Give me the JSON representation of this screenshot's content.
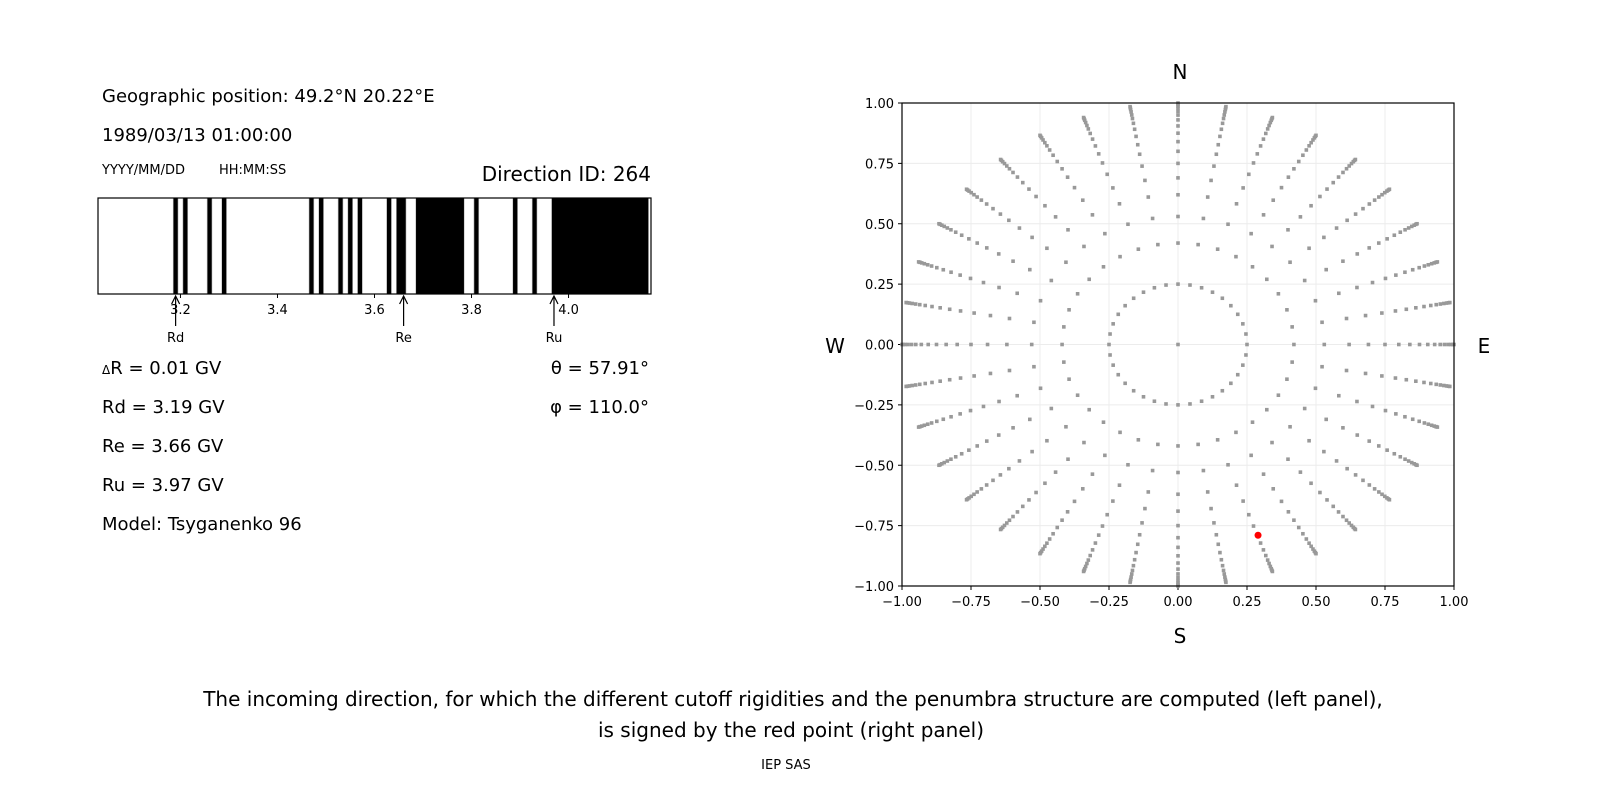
{
  "left_panel": {
    "position": "Geographic position: 49.2°N 20.22°E",
    "datetime": "1989/03/13 01:00:00",
    "date_format": "YYYY/MM/DD",
    "time_format": "HH:MM:SS",
    "direction_id": "Direction ID: 264",
    "delta_r": "R = 0.01 GV",
    "delta_symbol": "Δ",
    "rd": "Rd = 3.19 GV",
    "re": "Re = 3.66 GV",
    "ru": "Ru = 3.97 GV",
    "model": "Model: Tsyganenko 96",
    "theta": "θ = 57.91°",
    "phi": "φ = 110.0°"
  },
  "chart_data": [
    {
      "type": "bar",
      "description_kind": "penumbra",
      "xlim": [
        3.03,
        4.17
      ],
      "xticks": [
        3.2,
        3.4,
        3.6,
        3.8,
        4.0
      ],
      "xtick_labels": [
        "3.2",
        "3.4",
        "3.6",
        "3.8",
        "4.0"
      ],
      "step_gv": 0.01,
      "black_bands_gv": [
        [
          3.19,
          3.2
        ],
        [
          3.21,
          3.22
        ],
        [
          3.26,
          3.27
        ],
        [
          3.29,
          3.3
        ],
        [
          3.47,
          3.48
        ],
        [
          3.49,
          3.5
        ],
        [
          3.53,
          3.54
        ],
        [
          3.55,
          3.56
        ],
        [
          3.57,
          3.58
        ],
        [
          3.63,
          3.64
        ],
        [
          3.65,
          3.67
        ],
        [
          3.69,
          3.79
        ],
        [
          3.81,
          3.82
        ],
        [
          3.89,
          3.9
        ],
        [
          3.93,
          3.94
        ],
        [
          3.97,
          4.17
        ]
      ],
      "markers": [
        {
          "label": "Rd",
          "value": 3.19
        },
        {
          "label": "Re",
          "value": 3.66
        },
        {
          "label": "Ru",
          "value": 3.97
        }
      ]
    },
    {
      "type": "scatter",
      "xlim": [
        -1.0,
        1.0
      ],
      "ylim": [
        -1.0,
        1.0
      ],
      "xtick_labels": [
        "−1.00",
        "−0.75",
        "−0.50",
        "−0.25",
        "0.00",
        "0.25",
        "0.50",
        "0.75",
        "1.00"
      ],
      "ytick_labels": [
        "1.00",
        "0.75",
        "0.50",
        "0.25",
        "0.00",
        "−0.25",
        "−0.50",
        "−0.75",
        "−1.00"
      ],
      "grid": true,
      "compass": {
        "north": "N",
        "south": "S",
        "west": "W",
        "east": "E"
      },
      "point_color": "#999999",
      "highlight_color": "#ff0000",
      "center_point": [
        0,
        0
      ],
      "ring": {
        "r": 0.25,
        "azimuth_step_deg": 10
      },
      "spokes": {
        "azimuth_step_deg": 10,
        "r": [
          0.42,
          0.53,
          0.62,
          0.69,
          0.75,
          0.8,
          0.84,
          0.875,
          0.905,
          0.93,
          0.95,
          0.965,
          0.978,
          0.988,
          0.995,
          1.0
        ]
      },
      "highlight_point": [
        0.29,
        -0.79
      ]
    }
  ],
  "caption": {
    "line1": "The incoming direction, for which the different cutoff rigidities and the penumbra structure are computed (left panel),",
    "line2": "is signed by the red point (right panel)"
  },
  "footer": "IEP SAS"
}
